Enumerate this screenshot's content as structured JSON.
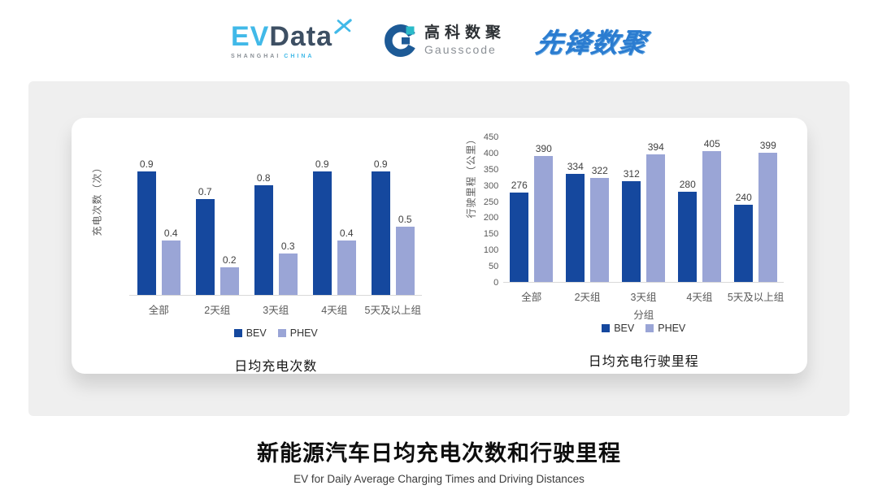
{
  "header": {
    "evdata": {
      "ev": "EV",
      "data": "Data",
      "sub_left": "SHANGHAI",
      "sub_right": "CHINA"
    },
    "gausscode": {
      "cn": "高科数聚",
      "en": "Gausscode"
    },
    "xianfeng": "先锋数聚"
  },
  "chart_data": [
    {
      "type": "bar",
      "title": "日均充电次数",
      "ylabel": "充电次数（次）",
      "xlabel": "",
      "categories": [
        "全部",
        "2天组",
        "3天组",
        "4天组",
        "5天及以上组"
      ],
      "series": [
        {
          "name": "BEV",
          "color": "#15489E",
          "values": [
            0.9,
            0.7,
            0.8,
            0.9,
            0.9
          ]
        },
        {
          "name": "PHEV",
          "color": "#9AA5D6",
          "values": [
            0.4,
            0.2,
            0.3,
            0.4,
            0.5
          ]
        }
      ],
      "ylim": [
        0,
        1.0
      ],
      "yticks": [],
      "grid": false,
      "legend_position": "bottom",
      "value_decimals": 1
    },
    {
      "type": "bar",
      "title": "日均充电行驶里程",
      "ylabel": "行驶里程（公里）",
      "xlabel": "分组",
      "categories": [
        "全部",
        "2天组",
        "3天组",
        "4天组",
        "5天及以上组"
      ],
      "series": [
        {
          "name": "BEV",
          "color": "#15489E",
          "values": [
            276,
            334,
            312,
            280,
            240
          ]
        },
        {
          "name": "PHEV",
          "color": "#9AA5D6",
          "values": [
            390,
            322,
            394,
            405,
            399
          ]
        }
      ],
      "ylim": [
        0,
        450
      ],
      "yticks": [
        450,
        400,
        350,
        300,
        250,
        200,
        150,
        100,
        50,
        0
      ],
      "grid": false,
      "legend_position": "bottom",
      "value_decimals": 0
    }
  ],
  "footer": {
    "title": "新能源汽车日均充电次数和行驶里程",
    "subtitle": "EV for Daily Average Charging Times and Driving Distances"
  },
  "colors": {
    "bev": "#15489E",
    "phev": "#9AA5D6",
    "panel_gray": "#EFEFEF",
    "evdata_cyan": "#41B9E8",
    "evdata_dark": "#3D4F63",
    "gausscode_blue": "#1D5A96",
    "gausscode_teal": "#2BBBC9",
    "xianfeng_blue": "#2B7CD0"
  }
}
